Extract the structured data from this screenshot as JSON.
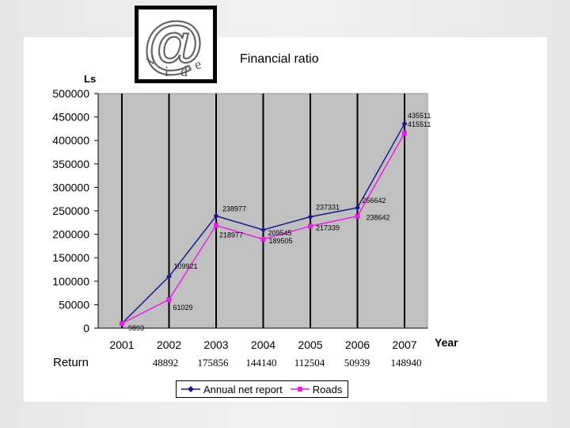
{
  "chart_data": {
    "type": "line",
    "title": "Financial ratio",
    "ylabel": "Ls",
    "xlabel": "Year",
    "ylim": [
      0,
      500000
    ],
    "yticks": [
      0,
      50000,
      100000,
      150000,
      200000,
      250000,
      300000,
      350000,
      400000,
      450000,
      500000
    ],
    "categories": [
      "2001",
      "2002",
      "2003",
      "2004",
      "2005",
      "2006",
      "2007"
    ],
    "series": [
      {
        "name": "Annual net report",
        "color": "#1a1a8c",
        "marker": "diamond",
        "values": [
          9893,
          109921,
          238977,
          209545,
          237331,
          256642,
          435511
        ],
        "labels": [
          "9893",
          "109921",
          "238977",
          "209545",
          "237331",
          "256642",
          "435511"
        ]
      },
      {
        "name": "Roads",
        "color": "#e81ee8",
        "marker": "square",
        "values": [
          9893,
          61029,
          218977,
          189505,
          217339,
          238642,
          415511
        ],
        "labels": [
          "",
          "61029",
          "218977",
          "189505",
          "217339",
          "238642",
          "415511"
        ]
      }
    ],
    "returns": {
      "label": "Return",
      "values": [
        "48892",
        "175856",
        "144140",
        "112504",
        "50939",
        "148940"
      ]
    }
  },
  "logo": {
    "glyph": "@",
    "letters": [
      "V",
      "i",
      "d",
      "e"
    ]
  }
}
